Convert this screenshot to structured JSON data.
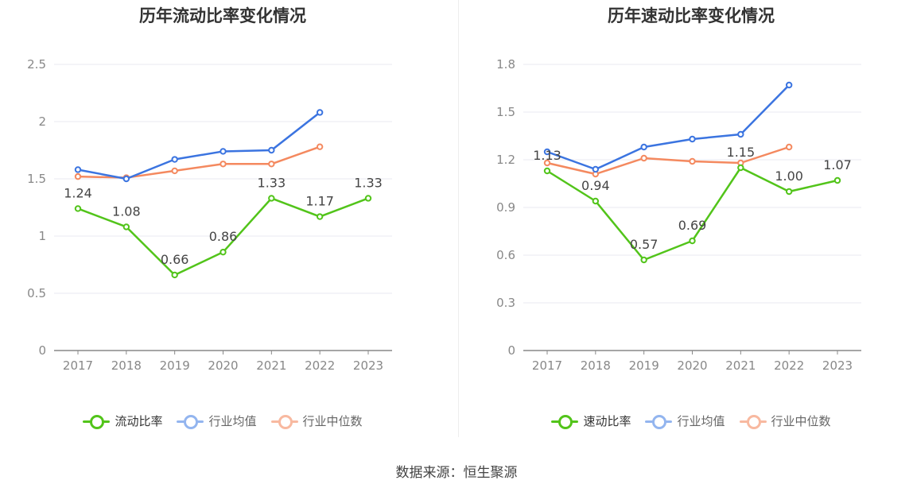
{
  "source_text": "数据来源：恒生聚源",
  "colors": {
    "main": "#52c41a",
    "industry_avg": "#3b74e0",
    "industry_median": "#f4895f",
    "grid": "#e8eaf2",
    "axis": "#888888",
    "tick_text": "#888888",
    "data_label": "#444444"
  },
  "chart_data": [
    {
      "type": "line",
      "title": "历年流动比率变化情况",
      "categories": [
        "2017",
        "2018",
        "2019",
        "2020",
        "2021",
        "2022",
        "2023"
      ],
      "ylim": [
        0,
        2.5
      ],
      "yticks": [
        "0",
        "0.5",
        "1",
        "1.5",
        "2",
        "2.5"
      ],
      "grid": true,
      "legend_position": "bottom",
      "series": [
        {
          "name": "流动比率",
          "color": "#52c41a",
          "values": [
            1.24,
            1.08,
            0.66,
            0.86,
            1.33,
            1.17,
            1.33
          ],
          "labels": [
            "1.24",
            "1.08",
            "0.66",
            "0.86",
            "1.33",
            "1.17",
            "1.33"
          ]
        },
        {
          "name": "行业均值",
          "color": "#3b74e0",
          "values": [
            1.58,
            1.5,
            1.67,
            1.74,
            1.75,
            2.08,
            null
          ]
        },
        {
          "name": "行业中位数",
          "color": "#f4895f",
          "values": [
            1.52,
            1.51,
            1.57,
            1.63,
            1.63,
            1.78,
            null
          ]
        }
      ]
    },
    {
      "type": "line",
      "title": "历年速动比率变化情况",
      "categories": [
        "2017",
        "2018",
        "2019",
        "2020",
        "2021",
        "2022",
        "2023"
      ],
      "ylim": [
        0,
        1.8
      ],
      "yticks": [
        "0",
        "0.3",
        "0.6",
        "0.9",
        "1.2",
        "1.5",
        "1.8"
      ],
      "grid": true,
      "legend_position": "bottom",
      "series": [
        {
          "name": "速动比率",
          "color": "#52c41a",
          "values": [
            1.13,
            0.94,
            0.57,
            0.69,
            1.15,
            1.0,
            1.07
          ],
          "labels": [
            "1.13",
            "0.94",
            "0.57",
            "0.69",
            "1.15",
            "1.00",
            "1.07"
          ]
        },
        {
          "name": "行业均值",
          "color": "#3b74e0",
          "values": [
            1.25,
            1.14,
            1.28,
            1.33,
            1.36,
            1.67,
            null
          ]
        },
        {
          "name": "行业中位数",
          "color": "#f4895f",
          "values": [
            1.18,
            1.11,
            1.21,
            1.19,
            1.18,
            1.28,
            null
          ]
        }
      ]
    }
  ]
}
